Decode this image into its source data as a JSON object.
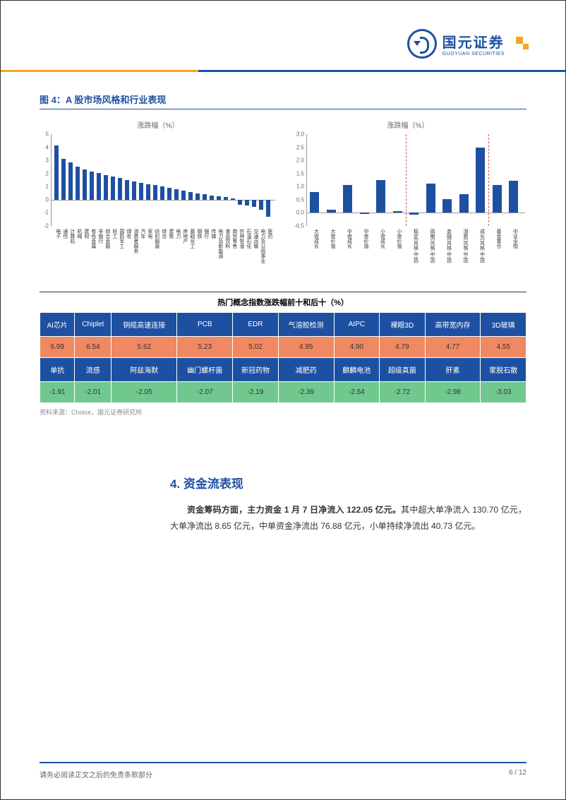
{
  "logo": {
    "cn": "国元证券",
    "en": "GUOYUAN SECURITIES"
  },
  "figure_title": "图 4：A 股市场风格和行业表现",
  "chart_left": {
    "title": "涨跌幅（%）",
    "ylim": [
      -2,
      5
    ],
    "yticks": [
      -2,
      -1,
      0,
      1,
      2,
      3,
      4,
      5
    ],
    "bar_color": "#1e50a2",
    "categories": [
      "电子",
      "通信",
      "计算机",
      "机械",
      "建材",
      "有色金属",
      "非银行",
      "综合金融",
      "轻工",
      "国防军工",
      "煤炭",
      "消费者服务",
      "汽车",
      "家电",
      "纺织服装",
      "综合",
      "建筑",
      "电力",
      "房地产",
      "基础化工",
      "钢铁",
      "银行",
      "传媒",
      "电力及新能源",
      "食品饮料",
      "商贸零售",
      "农林牧渔",
      "石油石化",
      "交通运输",
      "电力及公用事业",
      "医药"
    ],
    "values": [
      4.15,
      3.1,
      2.85,
      2.5,
      2.3,
      2.15,
      2.05,
      1.9,
      1.75,
      1.65,
      1.5,
      1.4,
      1.3,
      1.2,
      1.1,
      1.0,
      0.9,
      0.8,
      0.7,
      0.6,
      0.5,
      0.4,
      0.3,
      0.25,
      0.2,
      0.12,
      -0.4,
      -0.45,
      -0.55,
      -0.75,
      -1.3
    ]
  },
  "chart_right": {
    "title": "涨跌幅（%）",
    "ylim": [
      -0.5,
      3.0
    ],
    "yticks": [
      -0.5,
      0.0,
      0.5,
      1.0,
      1.5,
      2.0,
      2.5,
      3.0
    ],
    "bar_color": "#1e50a2",
    "categories": [
      "大盘成长",
      "大盘价值",
      "中盘成长",
      "中盘价值",
      "小盘成长",
      "小盘价值",
      "稳定(风格.中信)",
      "周期(风格.中信)",
      "金融(风格.中信)",
      "消费(风格.中信)",
      "成长(风格.中信)",
      "基金重仓",
      "中证全指"
    ],
    "values": [
      0.78,
      0.12,
      1.05,
      -0.05,
      1.25,
      0.07,
      -0.08,
      1.12,
      0.52,
      0.72,
      2.48,
      1.05,
      1.22
    ],
    "dashed_positions": [
      6,
      11
    ],
    "dashed_color": "#d9534f"
  },
  "table": {
    "title": "热门概念指数涨跌幅前十和后十（%）",
    "top_headers": [
      "AI芯片",
      "Chiplet",
      "铜缆高速连接",
      "PCB",
      "EDR",
      "气溶胶检测",
      "AIPC",
      "裸眼3D",
      "高带宽内存",
      "3D玻璃"
    ],
    "top_values": [
      "6.99",
      "6.54",
      "5.62",
      "5.23",
      "5.02",
      "4.95",
      "4.90",
      "4.79",
      "4.77",
      "4.55"
    ],
    "bot_headers": [
      "单抗",
      "流感",
      "阿兹海默",
      "幽门螺杆菌",
      "新冠药物",
      "减肥药",
      "麒麟电池",
      "超级真菌",
      "肝素",
      "蒙脱石散"
    ],
    "bot_values": [
      "-1.91",
      "-2.01",
      "-2.05",
      "-2.07",
      "-2.19",
      "-2.39",
      "-2.54",
      "-2.72",
      "-2.98",
      "-3.03"
    ],
    "header_bg": "#1e50a2",
    "top_val_bg": "#f08862",
    "bot_val_bg": "#70c88e"
  },
  "source": "资料来源：Choice，国元证券研究所",
  "section": {
    "title": "4. 资金流表现"
  },
  "body": {
    "bold": "资金筹码方面，主力资金 1 月 7 日净流入 122.05 亿元。",
    "rest": "其中超大单净流入 130.70 亿元，大单净流出 8.65 亿元，中单资金净流出 76.88 亿元，小单持续净流出 40.73 亿元。"
  },
  "footer": {
    "left": "请务必阅读正文之后的免责条款部分",
    "right": "6 / 12"
  }
}
